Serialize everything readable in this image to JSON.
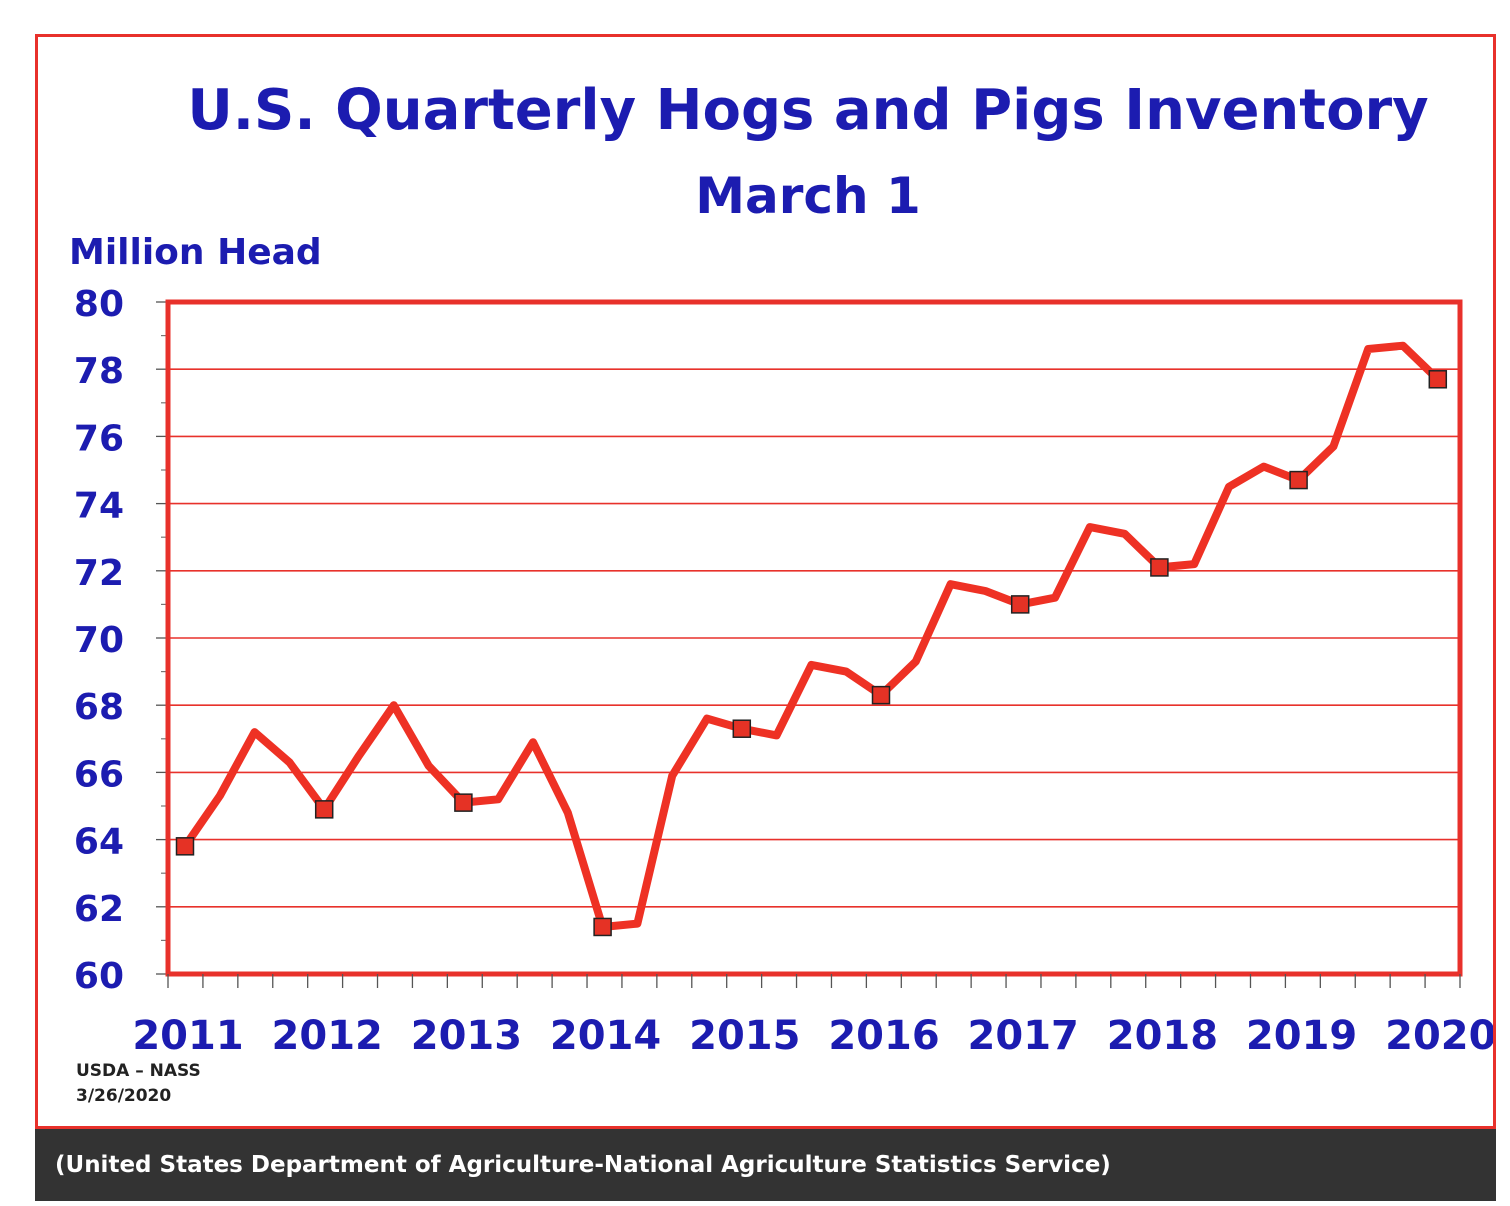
{
  "colors": {
    "line": "#ee3124",
    "gridline": "#e8312b",
    "plot_border": "#e8312b",
    "text_blue": "#1c1cb0",
    "caption_bg": "#333333"
  },
  "chart_data": {
    "type": "line",
    "title": "U.S. Quarterly Hogs and Pigs Inventory",
    "subtitle": "March 1",
    "ylabel": "Million Head",
    "xlabel": "",
    "ylim": [
      60,
      80
    ],
    "yticks": [
      80,
      78,
      76,
      74,
      72,
      70,
      68,
      66,
      64,
      62,
      60
    ],
    "grid": true,
    "legend": "none",
    "year_labels": [
      "2011",
      "2012",
      "2013",
      "2014",
      "2015",
      "2016",
      "2017",
      "2018",
      "2019",
      "2020"
    ],
    "series": [
      {
        "values": [
          63.8,
          65.3,
          67.2,
          66.3,
          64.9,
          66.5,
          68.0,
          66.2,
          65.1,
          65.2,
          66.9,
          64.8,
          61.4,
          61.5,
          65.9,
          67.6,
          67.3,
          67.1,
          69.2,
          69.0,
          68.3,
          69.3,
          71.6,
          71.4,
          71.0,
          71.2,
          73.3,
          73.1,
          72.1,
          72.2,
          74.5,
          75.1,
          74.7,
          75.7,
          78.6,
          78.7,
          77.7
        ],
        "march_indices": [
          0,
          4,
          8,
          12,
          16,
          20,
          24,
          28,
          32,
          36
        ]
      }
    ]
  },
  "source": {
    "line1": "USDA – NASS",
    "line2": "3/26/2020"
  },
  "caption": "(United States Department of Agriculture-National Agriculture Statistics Service)"
}
